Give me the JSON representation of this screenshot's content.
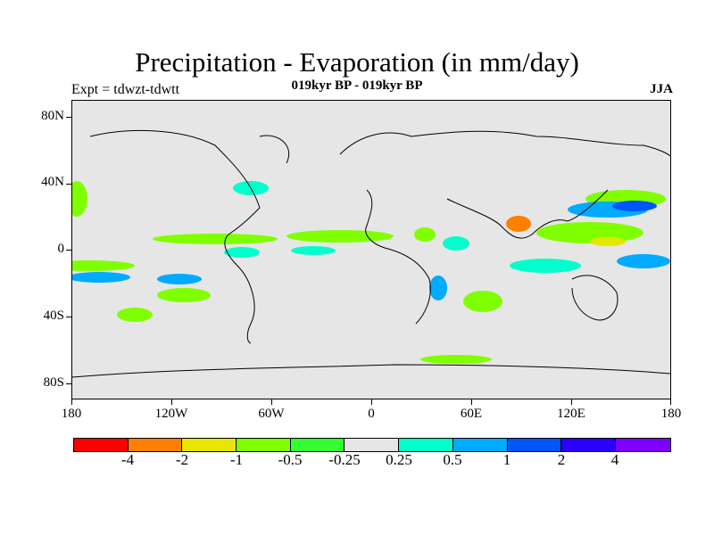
{
  "title": "Precipitation - Evaporation (in mm/day)",
  "experiment_label": "Expt = tdwzt-tdwtt",
  "period_label": "019kyr BP - 019kyr BP",
  "season_label": "JJA",
  "lat_labels": [
    "80N",
    "40N",
    "0",
    "40S",
    "80S"
  ],
  "lon_labels": [
    "180",
    "120W",
    "60W",
    "0",
    "60E",
    "120E",
    "180"
  ],
  "colorbar": {
    "colors": [
      "#ff0000",
      "#ff8000",
      "#e6e600",
      "#80ff00",
      "#33ff33",
      "#e6e6e6",
      "#00ffcc",
      "#00aaff",
      "#0055ff",
      "#2b00ff",
      "#8000ff"
    ],
    "labels": [
      "-4",
      "-2",
      "-1",
      "-0.5",
      "-0.25",
      "0.25",
      "0.5",
      "1",
      "2",
      "4"
    ]
  },
  "map_colors": {
    "background": "#e6e6e6",
    "coastline": "#000000"
  }
}
